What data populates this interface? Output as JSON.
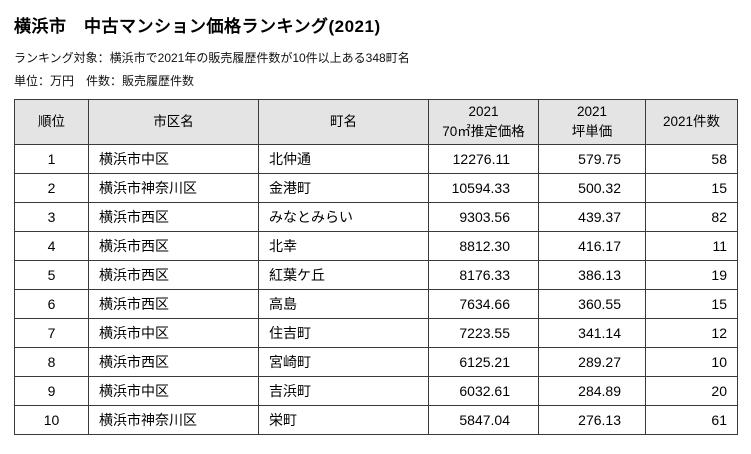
{
  "page": {
    "title": "横浜市　中古マンション価格ランキング(2021)",
    "subtitle": "ランキング対象：横浜市で2021年の販売履歴件数が10件以上ある348町名",
    "note": "単位：万円　件数：販売履歴件数"
  },
  "colors": {
    "header_bg": "#e4e4e4",
    "border": "#3a3a3a"
  },
  "table": {
    "columns": {
      "rank": "順位",
      "ward": "市区名",
      "town": "町名",
      "price_line1": "2021",
      "price_line2": "70㎡推定価格",
      "tsubo_line1": "2021",
      "tsubo_line2": "坪単価",
      "count": "2021件数"
    },
    "rows": [
      {
        "rank": "1",
        "ward": "横浜市中区",
        "town": "北仲通",
        "price": "12276.11",
        "tsubo": "579.75",
        "count": "58"
      },
      {
        "rank": "2",
        "ward": "横浜市神奈川区",
        "town": "金港町",
        "price": "10594.33",
        "tsubo": "500.32",
        "count": "15"
      },
      {
        "rank": "3",
        "ward": "横浜市西区",
        "town": "みなとみらい",
        "price": "9303.56",
        "tsubo": "439.37",
        "count": "82"
      },
      {
        "rank": "4",
        "ward": "横浜市西区",
        "town": "北幸",
        "price": "8812.30",
        "tsubo": "416.17",
        "count": "11"
      },
      {
        "rank": "5",
        "ward": "横浜市西区",
        "town": "紅葉ケ丘",
        "price": "8176.33",
        "tsubo": "386.13",
        "count": "19"
      },
      {
        "rank": "6",
        "ward": "横浜市西区",
        "town": "高島",
        "price": "7634.66",
        "tsubo": "360.55",
        "count": "15"
      },
      {
        "rank": "7",
        "ward": "横浜市中区",
        "town": "住吉町",
        "price": "7223.55",
        "tsubo": "341.14",
        "count": "12"
      },
      {
        "rank": "8",
        "ward": "横浜市西区",
        "town": "宮崎町",
        "price": "6125.21",
        "tsubo": "289.27",
        "count": "10"
      },
      {
        "rank": "9",
        "ward": "横浜市中区",
        "town": "吉浜町",
        "price": "6032.61",
        "tsubo": "284.89",
        "count": "20"
      },
      {
        "rank": "10",
        "ward": "横浜市神奈川区",
        "town": "栄町",
        "price": "5847.04",
        "tsubo": "276.13",
        "count": "61"
      }
    ]
  }
}
